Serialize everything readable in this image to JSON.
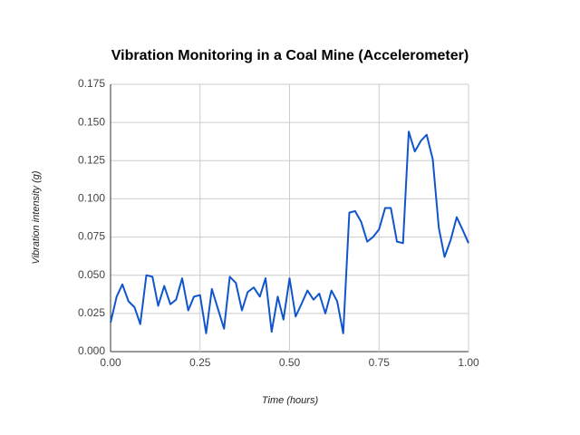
{
  "chart_data": {
    "type": "line",
    "title": "Vibration Monitoring in a Coal Mine (Accelerometer)",
    "x_label": "Time (hours)",
    "y_label": "Vibration intensity (g)",
    "x": [
      0,
      0.017,
      0.033,
      0.05,
      0.067,
      0.083,
      0.1,
      0.117,
      0.133,
      0.15,
      0.167,
      0.183,
      0.2,
      0.217,
      0.233,
      0.25,
      0.267,
      0.283,
      0.3,
      0.317,
      0.333,
      0.35,
      0.367,
      0.383,
      0.4,
      0.417,
      0.433,
      0.45,
      0.467,
      0.483,
      0.5,
      0.517,
      0.533,
      0.55,
      0.567,
      0.583,
      0.6,
      0.617,
      0.633,
      0.65,
      0.667,
      0.683,
      0.7,
      0.717,
      0.733,
      0.75,
      0.767,
      0.783,
      0.8,
      0.817,
      0.833,
      0.85,
      0.867,
      0.883,
      0.9,
      0.917,
      0.933,
      0.95,
      0.967,
      0.983,
      1
    ],
    "series": [
      {
        "name": "Vibration intensity",
        "color": "#1155cc",
        "values": [
          0.019,
          0.036,
          0.044,
          0.033,
          0.029,
          0.018,
          0.05,
          0.049,
          0.03,
          0.043,
          0.031,
          0.034,
          0.048,
          0.027,
          0.036,
          0.037,
          0.012,
          0.041,
          0.028,
          0.015,
          0.049,
          0.045,
          0.027,
          0.039,
          0.042,
          0.036,
          0.048,
          0.013,
          0.036,
          0.021,
          0.048,
          0.023,
          0.031,
          0.04,
          0.034,
          0.038,
          0.025,
          0.04,
          0.033,
          0.012,
          0.091,
          0.092,
          0.085,
          0.072,
          0.075,
          0.08,
          0.094,
          0.094,
          0.072,
          0.071,
          0.144,
          0.131,
          0.138,
          0.142,
          0.126,
          0.081,
          0.062,
          0.073,
          0.088,
          0.08,
          0.071
        ]
      }
    ],
    "xlim": [
      0,
      1
    ],
    "xticks": [
      {
        "value": 0,
        "label": "0.00"
      },
      {
        "value": 0.25,
        "label": "0.25"
      },
      {
        "value": 0.5,
        "label": "0.50"
      },
      {
        "value": 0.75,
        "label": "0.75"
      },
      {
        "value": 1,
        "label": "1.00"
      }
    ],
    "ylim": [
      0,
      0.175
    ],
    "yticks": [
      {
        "value": 0,
        "label": "0.000"
      },
      {
        "value": 0.025,
        "label": "0.025"
      },
      {
        "value": 0.05,
        "label": "0.050"
      },
      {
        "value": 0.075,
        "label": "0.075"
      },
      {
        "value": 0.1,
        "label": "0.100"
      },
      {
        "value": 0.125,
        "label": "0.125"
      },
      {
        "value": 0.15,
        "label": "0.150"
      },
      {
        "value": 0.175,
        "label": "0.175"
      }
    ],
    "grid": true
  }
}
